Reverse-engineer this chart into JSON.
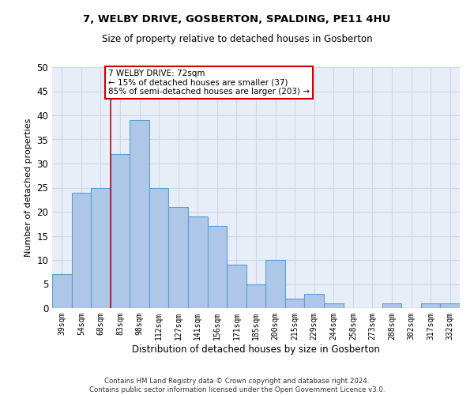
{
  "title": "7, WELBY DRIVE, GOSBERTON, SPALDING, PE11 4HU",
  "subtitle": "Size of property relative to detached houses in Gosberton",
  "xlabel": "Distribution of detached houses by size in Gosberton",
  "ylabel": "Number of detached properties",
  "footer_line1": "Contains HM Land Registry data © Crown copyright and database right 2024.",
  "footer_line2": "Contains public sector information licensed under the Open Government Licence v3.0.",
  "categories": [
    "39sqm",
    "54sqm",
    "68sqm",
    "83sqm",
    "98sqm",
    "112sqm",
    "127sqm",
    "141sqm",
    "156sqm",
    "171sqm",
    "185sqm",
    "200sqm",
    "215sqm",
    "229sqm",
    "244sqm",
    "258sqm",
    "273sqm",
    "288sqm",
    "302sqm",
    "317sqm",
    "332sqm"
  ],
  "values": [
    7,
    24,
    25,
    32,
    39,
    25,
    21,
    19,
    17,
    9,
    5,
    10,
    2,
    3,
    1,
    0,
    0,
    1,
    0,
    1,
    1
  ],
  "bar_color": "#aec6e8",
  "bar_edge_color": "#5a9fd4",
  "grid_color": "#d0d8e8",
  "background_color": "#e8eef8",
  "vline_x": 2.5,
  "vline_color": "#cc0000",
  "annotation_title": "7 WELBY DRIVE: 72sqm",
  "annotation_line1": "← 15% of detached houses are smaller (37)",
  "annotation_line2": "85% of semi-detached houses are larger (203) →",
  "annotation_box_color": "#ffffff",
  "annotation_box_edge": "#cc0000",
  "ylim": [
    0,
    50
  ],
  "yticks": [
    0,
    5,
    10,
    15,
    20,
    25,
    30,
    35,
    40,
    45,
    50
  ]
}
